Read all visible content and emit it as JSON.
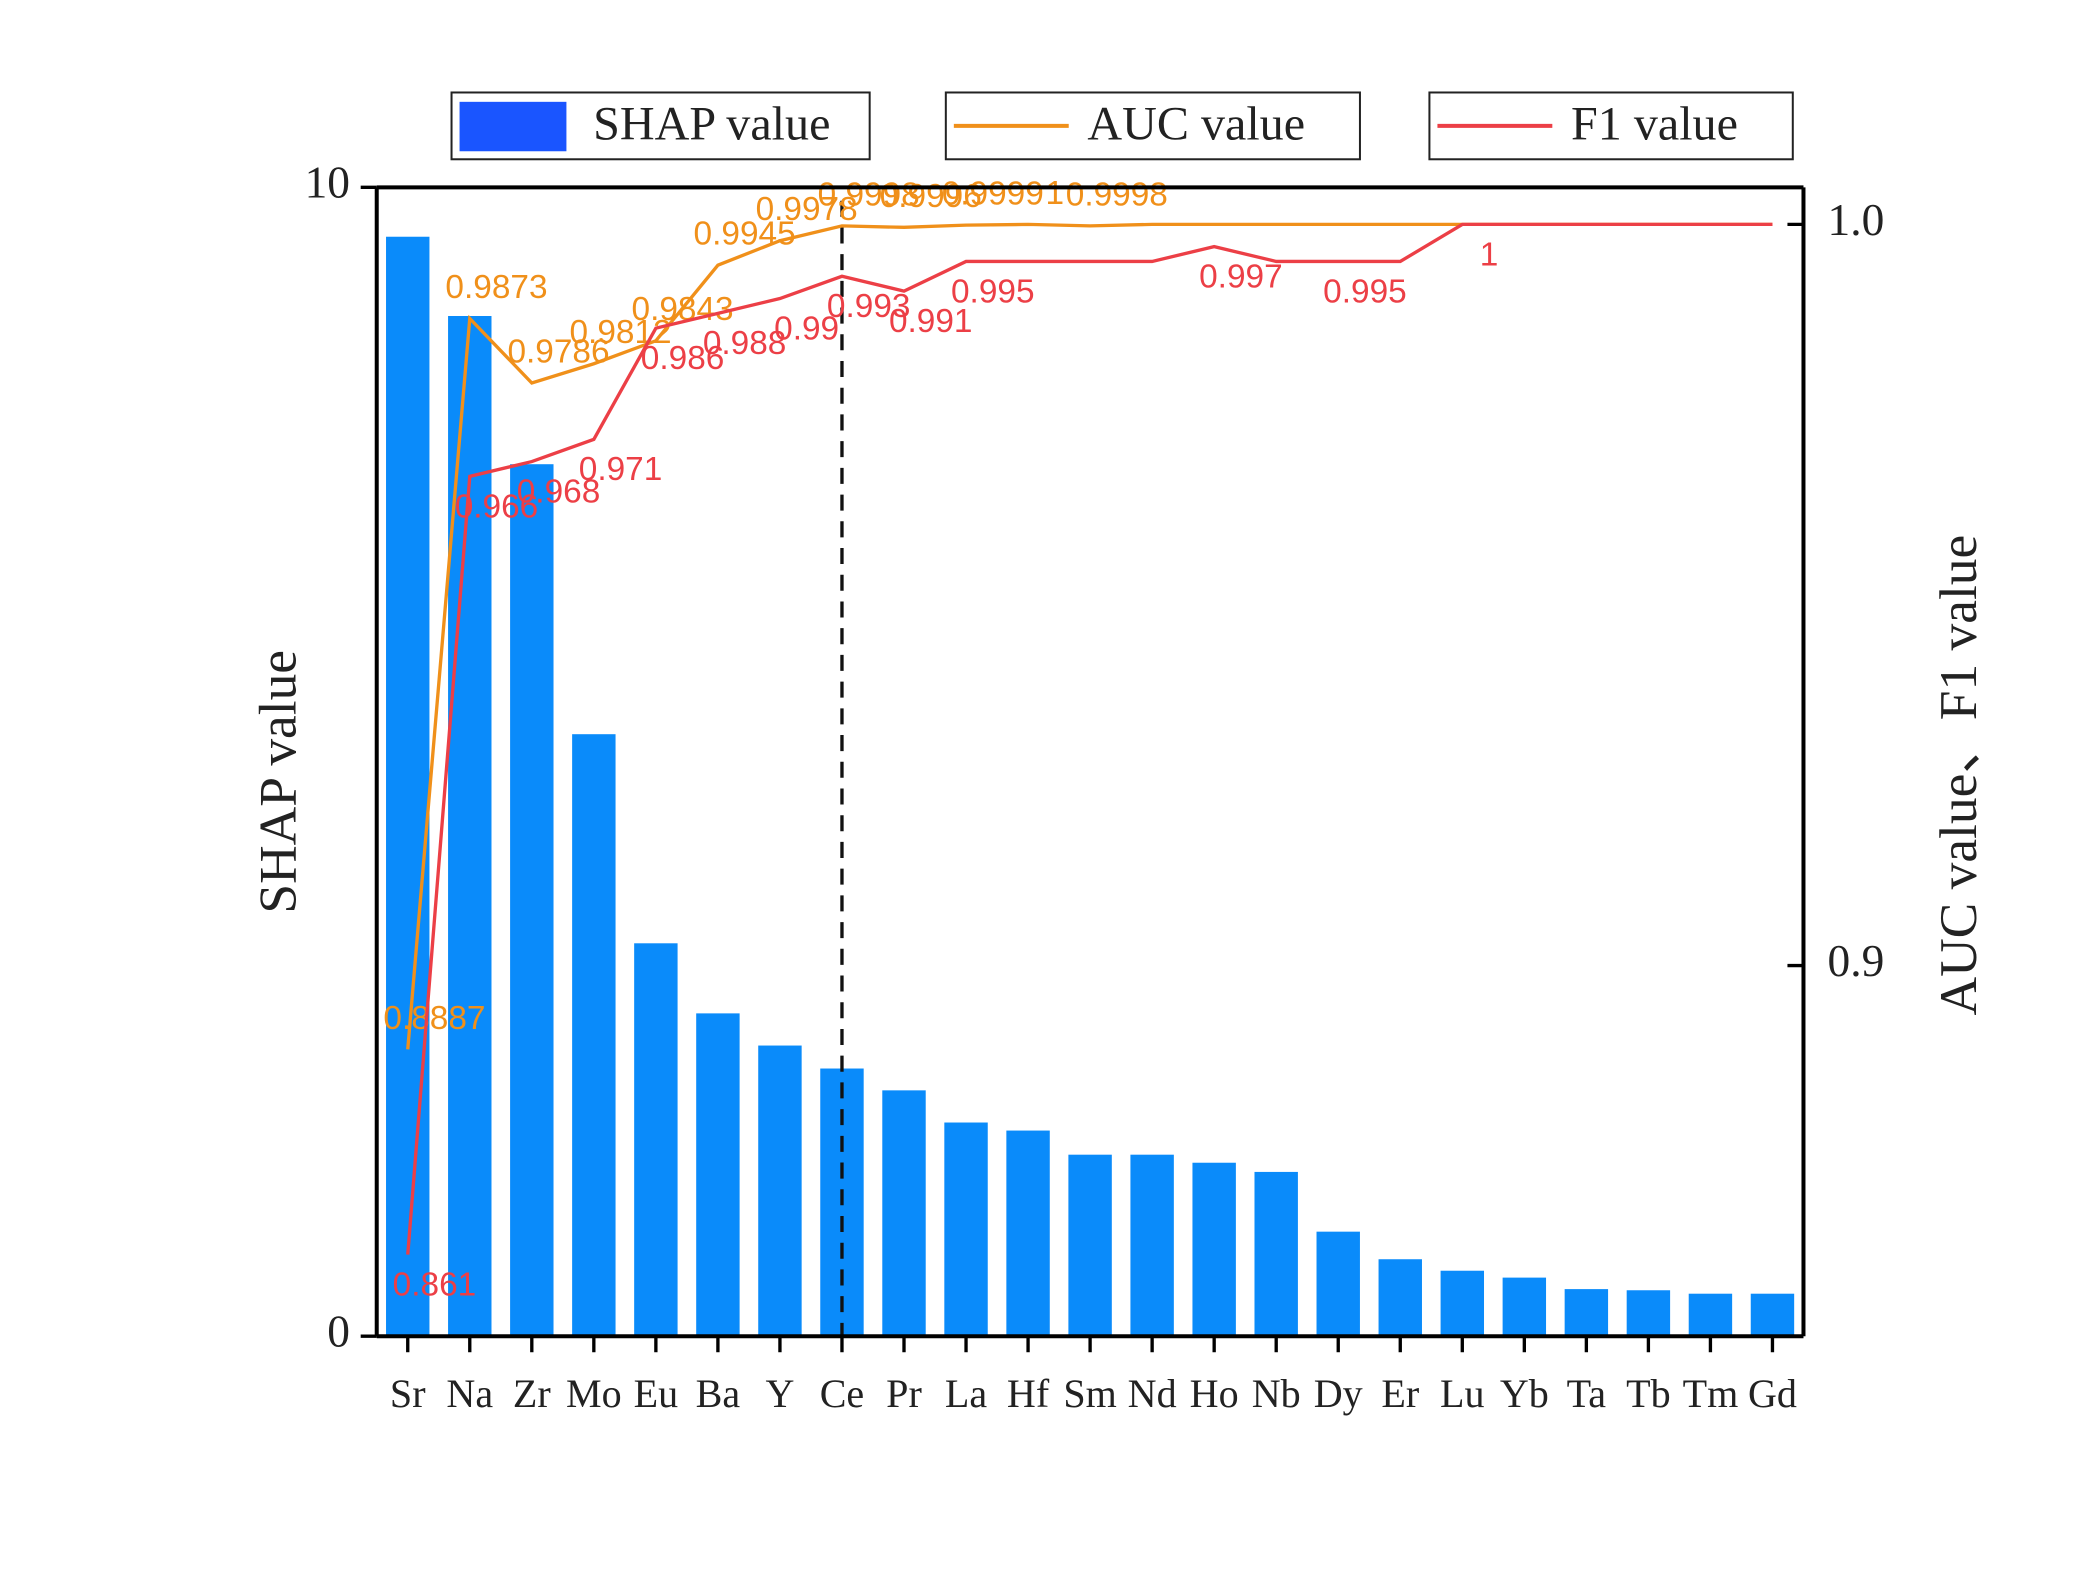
{
  "chart_data": {
    "type": "bar",
    "categories": [
      "Sr",
      "Na",
      "Zr",
      "Mo",
      "Eu",
      "Ba",
      "Y",
      "Ce",
      "Pr",
      "La",
      "Hf",
      "Sm",
      "Nd",
      "Ho",
      "Nb",
      "Dy",
      "Er",
      "Lu",
      "Yb",
      "Ta",
      "Tb",
      "Tm",
      "Gd"
    ],
    "ylabel": "SHAP value",
    "y2label": "AUC value、F1 value",
    "ylim": [
      0,
      10
    ],
    "yticks": [
      0,
      10
    ],
    "y2lim": [
      0.85,
      1.005
    ],
    "y2ticks": [
      {
        "value": 0.9,
        "label": "0.9"
      },
      {
        "value": 1,
        "label": "1.0"
      }
    ],
    "series": [
      {
        "name": "SHAP value",
        "type": "bar",
        "color": "#0a8bfa",
        "legend_color": "#1a55ff",
        "values": [
          9.57,
          8.88,
          7.59,
          5.24,
          3.42,
          2.81,
          2.53,
          2.33,
          2.14,
          1.86,
          1.79,
          1.58,
          1.58,
          1.51,
          1.43,
          0.91,
          0.67,
          0.57,
          0.51,
          0.41,
          0.4,
          0.37,
          0.37
        ]
      },
      {
        "name": "AUC value",
        "type": "line",
        "axis": "y2",
        "color": "#f0901a",
        "values": [
          0.8887,
          0.9873,
          0.9786,
          0.9812,
          0.9843,
          0.9945,
          0.9978,
          0.9998,
          0.9996,
          0.9999,
          1,
          0.9998,
          1,
          1,
          1,
          1,
          1,
          1,
          1,
          1,
          1,
          1,
          1
        ],
        "value_labels": [
          "0.8887",
          "0.9873",
          "0.9786",
          "0.9812",
          "0.9843",
          "0.9945",
          "0.9978",
          "0.9998",
          "0.9996",
          "0.9999",
          "1",
          "0.9998",
          null,
          null,
          null,
          null,
          null,
          null,
          null,
          null,
          null,
          null,
          null
        ]
      },
      {
        "name": "F1 value",
        "type": "line",
        "axis": "y2",
        "color": "#ec3f46",
        "values": [
          0.861,
          0.966,
          0.968,
          0.971,
          0.986,
          0.988,
          0.99,
          0.993,
          0.991,
          0.995,
          0.995,
          0.995,
          0.995,
          0.997,
          0.995,
          0.995,
          0.995,
          1,
          1,
          1,
          1,
          1,
          1
        ],
        "value_labels": [
          "0.861",
          "0.966",
          "0.968",
          "0.971",
          "0.986",
          "0.988",
          "0.99",
          "0.993",
          "0.991",
          "0.995",
          null,
          null,
          null,
          "0.997",
          null,
          "0.995",
          null,
          "1",
          null,
          null,
          null,
          null,
          null
        ]
      }
    ]
  }
}
